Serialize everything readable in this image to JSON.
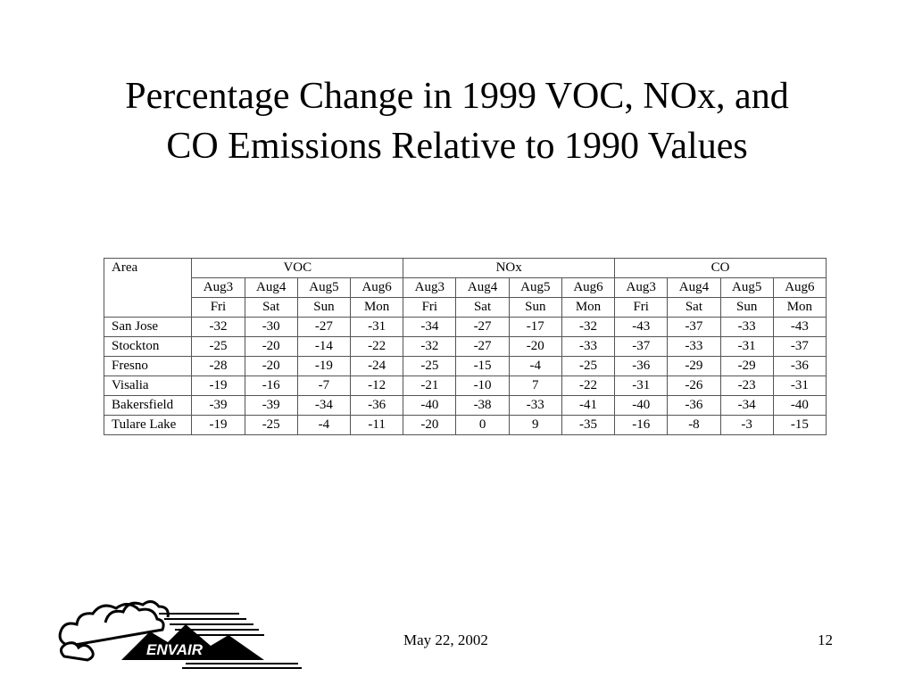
{
  "title": {
    "line1": "Percentage Change in 1999 VOC, NOx, and",
    "line2": "CO Emissions Relative to 1990 Values"
  },
  "table": {
    "area_header": "Area",
    "groups": [
      "VOC",
      "NOx",
      "CO"
    ],
    "dates": [
      "Aug3",
      "Aug4",
      "Aug5",
      "Aug6",
      "Aug3",
      "Aug4",
      "Aug5",
      "Aug6",
      "Aug3",
      "Aug4",
      "Aug5",
      "Aug6"
    ],
    "days": [
      "Fri",
      "Sat",
      "Sun",
      "Mon",
      "Fri",
      "Sat",
      "Sun",
      "Mon",
      "Fri",
      "Sat",
      "Sun",
      "Mon"
    ],
    "rows": [
      {
        "area": "San Jose",
        "values": [
          "-32",
          "-30",
          "-27",
          "-31",
          "-34",
          "-27",
          "-17",
          "-32",
          "-43",
          "-37",
          "-33",
          "-43"
        ]
      },
      {
        "area": "Stockton",
        "values": [
          "-25",
          "-20",
          "-14",
          "-22",
          "-32",
          "-27",
          "-20",
          "-33",
          "-37",
          "-33",
          "-31",
          "-37"
        ]
      },
      {
        "area": "Fresno",
        "values": [
          "-28",
          "-20",
          "-19",
          "-24",
          "-25",
          "-15",
          "-4",
          "-25",
          "-36",
          "-29",
          "-29",
          "-36"
        ]
      },
      {
        "area": "Visalia",
        "values": [
          "-19",
          "-16",
          "-7",
          "-12",
          "-21",
          "-10",
          "7",
          "-22",
          "-31",
          "-26",
          "-23",
          "-31"
        ]
      },
      {
        "area": "Bakersfield",
        "values": [
          "-39",
          "-39",
          "-34",
          "-36",
          "-40",
          "-38",
          "-33",
          "-41",
          "-40",
          "-36",
          "-34",
          "-40"
        ]
      },
      {
        "area": "Tulare Lake",
        "values": [
          "-19",
          "-25",
          "-4",
          "-11",
          "-20",
          "0",
          "9",
          "-35",
          "-16",
          "-8",
          "-3",
          "-15"
        ]
      }
    ]
  },
  "logo": {
    "text": "ENVAIR",
    "icon": "envair-cloud-mountain-logo"
  },
  "footer": {
    "date": "May 22, 2002",
    "page": "12"
  }
}
